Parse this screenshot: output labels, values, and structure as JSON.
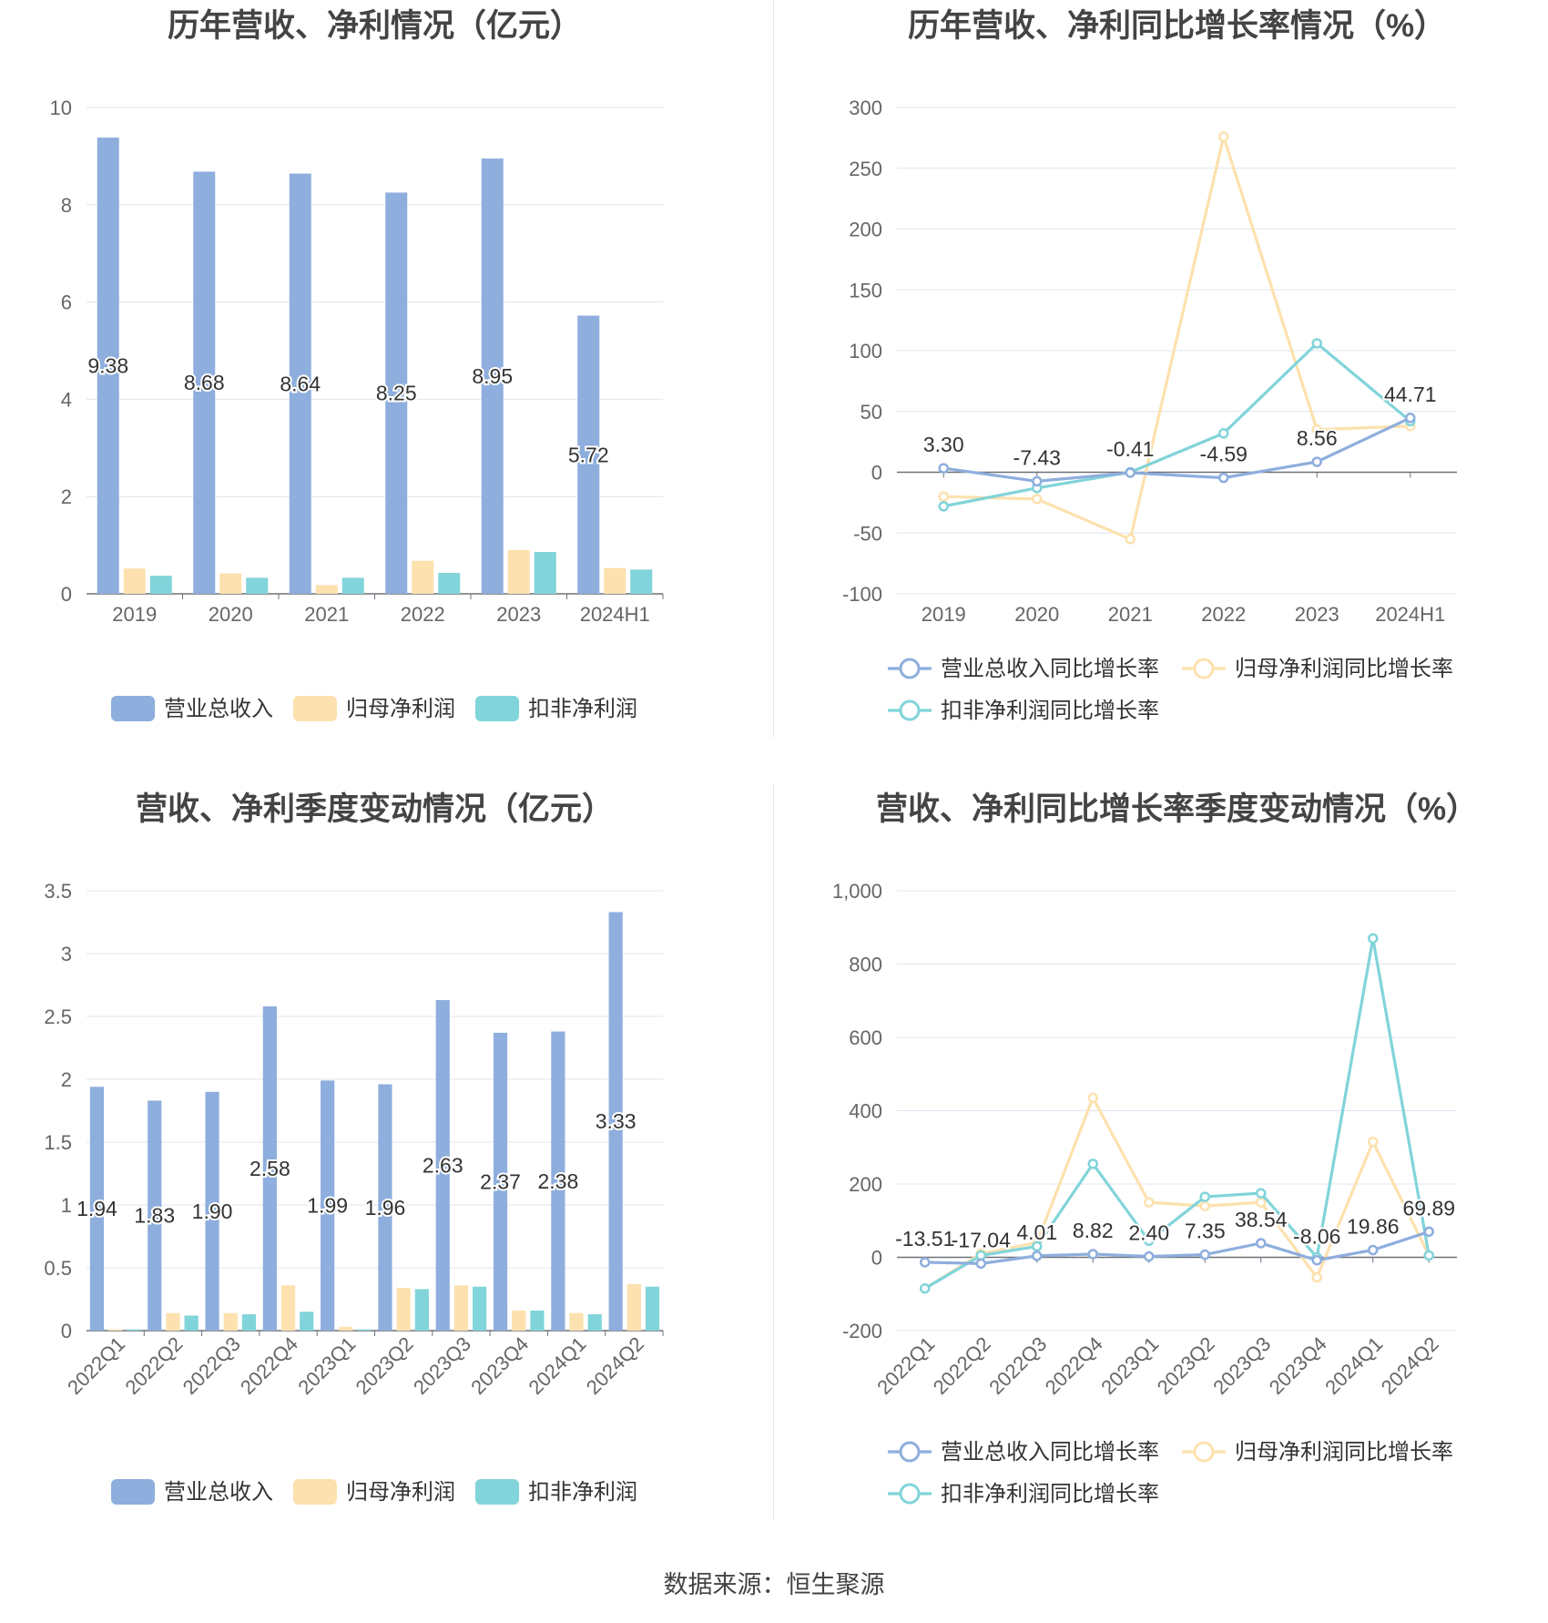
{
  "colors": {
    "revenue": "#8eaedd",
    "net": "#fde1ae",
    "deducted": "#81d4da",
    "grid": "#e0e4f0",
    "axis": "#555555",
    "text": "#333333",
    "title": "#444444"
  },
  "source": "数据来源：恒生聚源",
  "chart_data": [
    {
      "type": "bar",
      "title": "历年营收、净利情况（亿元）",
      "categories": [
        "2019",
        "2020",
        "2021",
        "2022",
        "2023",
        "2024H1"
      ],
      "ylim": [
        0,
        10
      ],
      "yticks": [
        0,
        2,
        4,
        6,
        8,
        10
      ],
      "grid": true,
      "legend_position": "bottom",
      "series": [
        {
          "name": "营业总收入",
          "values": [
            9.38,
            8.68,
            8.64,
            8.25,
            8.95,
            5.72
          ],
          "labels": [
            "9.38",
            "8.68",
            "8.64",
            "8.25",
            "8.95",
            "5.72"
          ]
        },
        {
          "name": "归母净利润",
          "values": [
            0.52,
            0.42,
            0.18,
            0.68,
            0.9,
            0.53
          ]
        },
        {
          "name": "扣非净利润",
          "values": [
            0.37,
            0.33,
            0.33,
            0.43,
            0.86,
            0.5
          ]
        }
      ]
    },
    {
      "type": "line",
      "title": "历年营收、净利同比增长率情况（%）",
      "categories": [
        "2019",
        "2020",
        "2021",
        "2022",
        "2023",
        "2024H1"
      ],
      "ylim": [
        -100,
        300
      ],
      "yticks": [
        -100,
        -50,
        0,
        50,
        100,
        150,
        200,
        250,
        300
      ],
      "grid": true,
      "legend_position": "bottom",
      "series": [
        {
          "name": "营业总收入同比增长率",
          "values": [
            3.3,
            -7.43,
            -0.41,
            -4.59,
            8.56,
            44.71
          ],
          "labels": [
            "3.30",
            "-7.43",
            "-0.41",
            "-4.59",
            "8.56",
            "44.71"
          ]
        },
        {
          "name": "归母净利润同比增长率",
          "values": [
            -20,
            -22,
            -55,
            276,
            35,
            38
          ]
        },
        {
          "name": "扣非净利润同比增长率",
          "values": [
            -28,
            -13,
            0,
            32,
            106,
            42
          ]
        }
      ]
    },
    {
      "type": "bar",
      "title": "营收、净利季度变动情况（亿元）",
      "categories": [
        "2022Q1",
        "2022Q2",
        "2022Q3",
        "2022Q4",
        "2023Q1",
        "2023Q2",
        "2023Q3",
        "2023Q4",
        "2024Q1",
        "2024Q2"
      ],
      "ylim": [
        0,
        3.5
      ],
      "yticks": [
        0,
        0.5,
        1,
        1.5,
        2,
        2.5,
        3,
        3.5
      ],
      "grid": true,
      "legend_position": "bottom",
      "series": [
        {
          "name": "营业总收入",
          "values": [
            1.94,
            1.83,
            1.9,
            2.58,
            1.99,
            1.96,
            2.63,
            2.37,
            2.38,
            3.33
          ],
          "labels": [
            "1.94",
            "1.83",
            "1.90",
            "2.58",
            "1.99",
            "1.96",
            "2.63",
            "2.37",
            "2.38",
            "3.33"
          ]
        },
        {
          "name": "归母净利润",
          "values": [
            0.01,
            0.14,
            0.14,
            0.36,
            0.03,
            0.34,
            0.36,
            0.16,
            0.14,
            0.37
          ]
        },
        {
          "name": "扣非净利润",
          "values": [
            0.01,
            0.12,
            0.13,
            0.15,
            0.01,
            0.33,
            0.35,
            0.16,
            0.13,
            0.35
          ]
        }
      ]
    },
    {
      "type": "line",
      "title": "营收、净利同比增长率季度变动情况（%）",
      "categories": [
        "2022Q1",
        "2022Q2",
        "2022Q3",
        "2022Q4",
        "2023Q1",
        "2023Q2",
        "2023Q3",
        "2023Q4",
        "2024Q1",
        "2024Q2"
      ],
      "ylim": [
        -200,
        1000
      ],
      "yticks": [
        -200,
        0,
        200,
        400,
        600,
        800,
        1000
      ],
      "ytick_labels": [
        "-200",
        "0",
        "200",
        "400",
        "600",
        "800",
        "1,000"
      ],
      "grid": true,
      "legend_position": "bottom",
      "series": [
        {
          "name": "营业总收入同比增长率",
          "values": [
            -13.51,
            -17.04,
            4.01,
            8.82,
            2.4,
            7.35,
            38.54,
            -8.06,
            19.86,
            69.89
          ],
          "labels": [
            "-13.51",
            "-17.04",
            "4.01",
            "8.82",
            "2.40",
            "7.35",
            "38.54",
            "-8.06",
            "19.86",
            "69.89"
          ]
        },
        {
          "name": "归母净利润同比增长率",
          "values": [
            -85,
            10,
            40,
            435,
            150,
            140,
            150,
            -55,
            315,
            5
          ]
        },
        {
          "name": "扣非净利润同比增长率",
          "values": [
            -85,
            5,
            30,
            255,
            45,
            165,
            175,
            0,
            870,
            5
          ]
        }
      ]
    }
  ]
}
